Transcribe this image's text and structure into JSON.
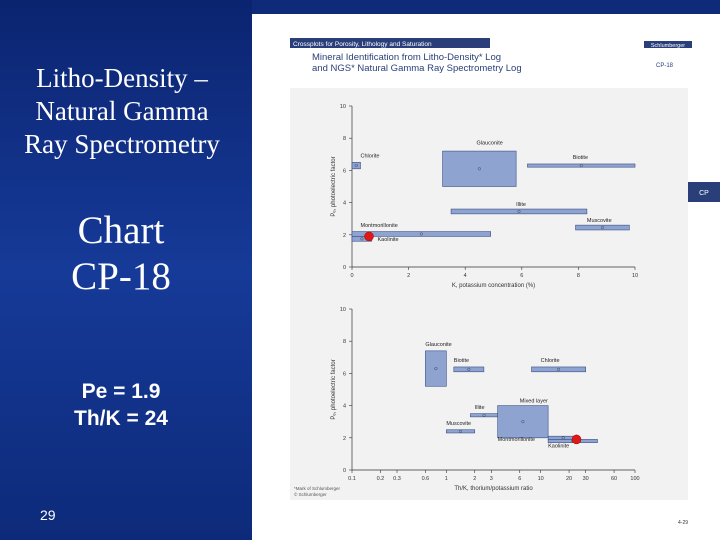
{
  "slide": {
    "title_lines": [
      "Litho-Density –",
      "Natural Gamma",
      "Ray Spectrometry"
    ],
    "chart_label_lines": [
      "Chart",
      "CP-18"
    ],
    "pe_line": "Pe = 1.9",
    "thk_line": "Th/K = 24",
    "slide_number": "29"
  },
  "document": {
    "header_bar": "Crossplots for Porosity, Lithology and Saturation",
    "brand": "Schlumberger",
    "heading_lines": [
      "Mineral Identification from Litho-Density* Log",
      "and NGS* Natural Gamma Ray Spectrometry Log"
    ],
    "chart_id": "CP-18",
    "side_tab": "CP",
    "footer_lines": [
      "*Mark of Schlumberger",
      "© Schlumberger"
    ],
    "page_number": "4-29"
  },
  "colors": {
    "slide_bg": "#0e2a78",
    "band_fill": "#8ea3cf",
    "band_stroke": "#3a4f87",
    "marker": "#e01818",
    "header_bar": "#2a3f7a",
    "side_tab": "#2a3f7a"
  },
  "chart_data": [
    {
      "type": "bar",
      "xlabel": "K, potassium concentration (%)",
      "ylabel": "Pₑ, photoelectric factor",
      "xlim": [
        0,
        10
      ],
      "ylim": [
        0,
        10
      ],
      "xticks": [
        "0",
        "2",
        "4",
        "6",
        "8",
        "10"
      ],
      "yticks": [
        "0",
        "2",
        "4",
        "6",
        "8",
        "10"
      ],
      "minerals": [
        {
          "name": "Glauconite",
          "x": [
            3.2,
            5.8
          ],
          "y": [
            5.0,
            7.2
          ],
          "label_x": 4.4,
          "label_y": 7.6
        },
        {
          "name": "Biotite",
          "x": [
            6.2,
            10.0
          ],
          "y": [
            6.2,
            6.4
          ],
          "label_x": 7.8,
          "label_y": 6.7
        },
        {
          "name": "Chlorite",
          "x": [
            0.0,
            0.3
          ],
          "y": [
            6.1,
            6.5
          ],
          "label_x": 0.3,
          "label_y": 6.8
        },
        {
          "name": "Illite",
          "x": [
            3.5,
            8.3
          ],
          "y": [
            3.3,
            3.6
          ],
          "label_x": 5.8,
          "label_y": 3.8
        },
        {
          "name": "Muscovite",
          "x": [
            7.9,
            9.8
          ],
          "y": [
            2.3,
            2.6
          ],
          "label_x": 8.3,
          "label_y": 2.8
        },
        {
          "name": "Montmorillonite",
          "x": [
            0.0,
            4.9
          ],
          "y": [
            1.9,
            2.2
          ],
          "label_x": 0.3,
          "label_y": 2.5
        },
        {
          "name": "Kaolinite",
          "x": [
            0.0,
            0.7
          ],
          "y": [
            1.6,
            1.9
          ],
          "label_x": 0.9,
          "label_y": 1.6
        }
      ],
      "marker": {
        "x": 0.6,
        "y": 1.9
      }
    },
    {
      "type": "bar",
      "xlabel": "Th/K, thorium/potassium ratio",
      "ylabel": "Pₑ, photoelectric factor",
      "xscale": "log",
      "xlim": [
        0.1,
        100
      ],
      "ylim": [
        0,
        10
      ],
      "xticks": [
        "0.1",
        "0.2",
        "0.3",
        "0.6",
        "1",
        "2",
        "3",
        "6",
        "10",
        "20",
        "30",
        "60",
        "100"
      ],
      "yticks": [
        "0",
        "2",
        "4",
        "6",
        "8",
        "10"
      ],
      "minerals": [
        {
          "name": "Glauconite",
          "x": [
            0.6,
            1.0
          ],
          "y": [
            5.2,
            7.4
          ],
          "label_x": 0.6,
          "label_y": 7.7
        },
        {
          "name": "Biotite",
          "x": [
            1.2,
            2.5
          ],
          "y": [
            6.1,
            6.4
          ],
          "label_x": 1.2,
          "label_y": 6.7
        },
        {
          "name": "Chlorite",
          "x": [
            8.0,
            30.0
          ],
          "y": [
            6.1,
            6.4
          ],
          "label_x": 10.0,
          "label_y": 6.7
        },
        {
          "name": "Mixed layer",
          "x": [
            3.5,
            12.0
          ],
          "y": [
            2.0,
            4.0
          ],
          "label_x": 6.0,
          "label_y": 4.2
        },
        {
          "name": "Illite",
          "x": [
            1.8,
            3.5
          ],
          "y": [
            3.3,
            3.5
          ],
          "label_x": 2.0,
          "label_y": 3.8
        },
        {
          "name": "Muscovite",
          "x": [
            1.0,
            2.0
          ],
          "y": [
            2.3,
            2.5
          ],
          "label_x": 1.0,
          "label_y": 2.8
        },
        {
          "name": "Montmorillonite",
          "x": [
            12.0,
            25.0
          ],
          "y": [
            1.9,
            2.1
          ],
          "label_x": 3.5,
          "label_y": 1.8
        },
        {
          "name": "Kaolinite",
          "x": [
            12.0,
            40.0
          ],
          "y": [
            1.7,
            1.9
          ],
          "label_x": 12.0,
          "label_y": 1.4
        }
      ],
      "marker": {
        "x": 24,
        "y": 1.9
      }
    }
  ]
}
